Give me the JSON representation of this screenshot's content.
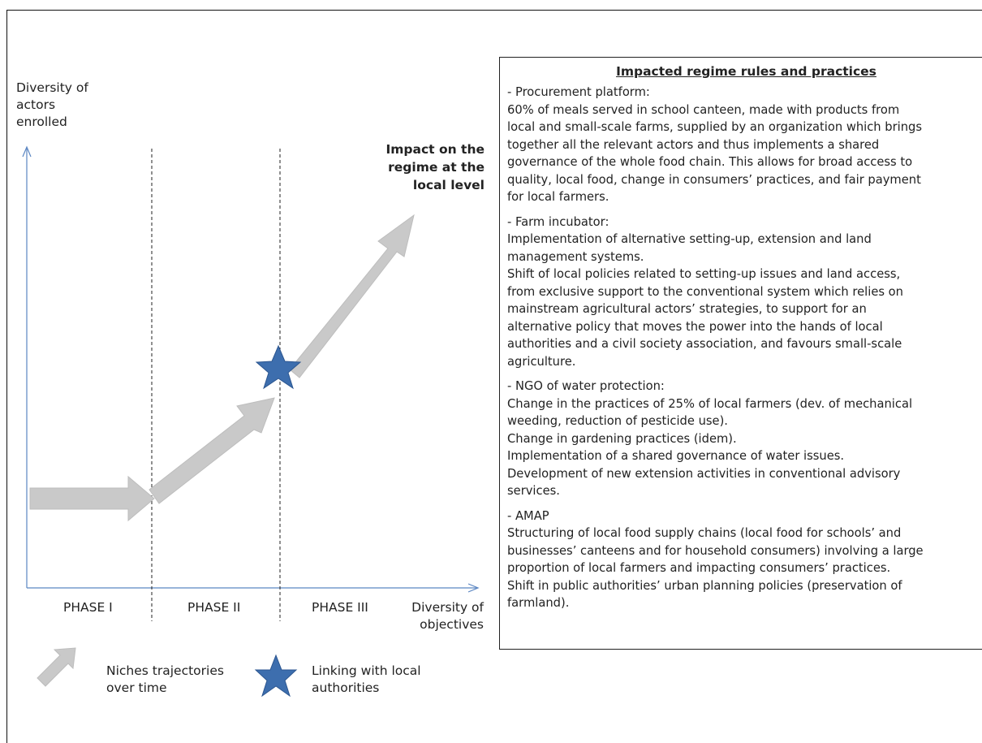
{
  "diagram": {
    "y_axis_label": [
      "Diversity of",
      "actors",
      "enrolled"
    ],
    "x_axis_label": [
      "Diversity of",
      "objectives"
    ],
    "impact_label": [
      "Impact on the",
      "regime at the",
      "local level"
    ],
    "phases": [
      "PHASE I",
      "PHASE II",
      "PHASE III"
    ],
    "legend": {
      "arrow_label": [
        "Niches trajectories",
        "over time"
      ],
      "star_label": [
        "Linking with local",
        "authorities"
      ]
    },
    "colors": {
      "arrow_fill": "#c9c9c9",
      "arrow_edge": "#bdbdbd",
      "axis": "#5b86c2",
      "star": "#3d6eae"
    }
  },
  "panel": {
    "title": "Impacted regime rules and practices",
    "sections": [
      {
        "heading": "- Procurement  platform:",
        "lines": [
          "60% of meals served in school canteen, made with products from",
          "local and small-scale farms, supplied by an organization which brings",
          "together all the relevant actors and thus implements a shared",
          "governance of the whole food chain. This allows for broad access to",
          "quality, local food, change in consumers’ practices, and fair payment",
          "for local farmers."
        ]
      },
      {
        "heading": "- Farm incubator:",
        "lines": [
          "Implementation of alternative setting-up, extension and land",
          "management systems.",
          "Shift of local policies related to setting-up issues and land access,",
          "from exclusive support to the conventional system which relies on",
          "mainstream agricultural actors’ strategies, to support for an",
          "alternative policy that moves the power into the hands of local",
          "authorities and a civil society association, and favours small-scale",
          "agriculture."
        ]
      },
      {
        "heading": "- NGO of water protection:",
        "lines": [
          "Change in the practices of 25% of local farmers (dev. of mechanical",
          "weeding, reduction of pesticide use).",
          "Change in gardening practices (idem).",
          "Implementation  of a shared governance of water issues.",
          "Development of new extension activities in conventional advisory",
          "services."
        ]
      },
      {
        "heading": "- AMAP",
        "lines": [
          "Structuring  of local food supply chains (local food for schools’ and",
          "businesses’ canteens and for household consumers) involving a large",
          "proportion  of local farmers and impacting consumers’ practices.",
          "Shift in public authorities’ urban planning policies (preservation of",
          "farmland)."
        ]
      }
    ]
  }
}
